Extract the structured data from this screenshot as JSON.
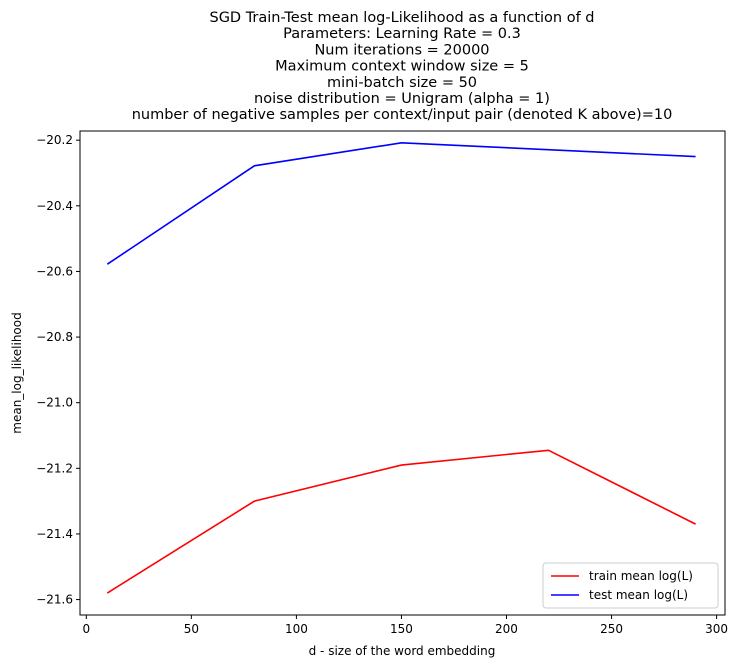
{
  "chart_data": {
    "type": "line",
    "title_lines": [
      "SGD Train-Test mean log-Likelihood as a function of d",
      "Parameters: Learning Rate = 0.3",
      "Num iterations = 20000",
      "Maximum context window size = 5",
      "mini-batch size = 50",
      "noise distribution = Unigram (alpha = 1)",
      "number of negative samples per context/input pair (denoted K above)=10"
    ],
    "xlabel": "d - size of the word embedding",
    "ylabel": "mean_log_likelihood",
    "xlim": [
      -3,
      304
    ],
    "ylim": [
      -21.647,
      -20.172
    ],
    "xticks": [
      0,
      50,
      100,
      150,
      200,
      250,
      300
    ],
    "xtick_labels": [
      "0",
      "50",
      "100",
      "150",
      "200",
      "250",
      "300"
    ],
    "yticks": [
      -21.6,
      -21.4,
      -21.2,
      -21.0,
      -20.8,
      -20.6,
      -20.4,
      -20.2
    ],
    "ytick_labels": [
      "−21.6",
      "−21.4",
      "−21.2",
      "−21.0",
      "−20.8",
      "−20.6",
      "−20.4",
      "−20.2"
    ],
    "grid": false,
    "legend_position": "lower-right",
    "series": [
      {
        "name": "train mean log(L)",
        "color": "#ff0000",
        "x": [
          10,
          80,
          150,
          220,
          290
        ],
        "y": [
          -21.58,
          -21.3,
          -21.19,
          -21.145,
          -21.37
        ]
      },
      {
        "name": "test mean log(L)",
        "color": "#0000ff",
        "x": [
          10,
          80,
          150,
          290
        ],
        "y": [
          -20.578,
          -20.278,
          -20.208,
          -20.25
        ]
      }
    ]
  }
}
